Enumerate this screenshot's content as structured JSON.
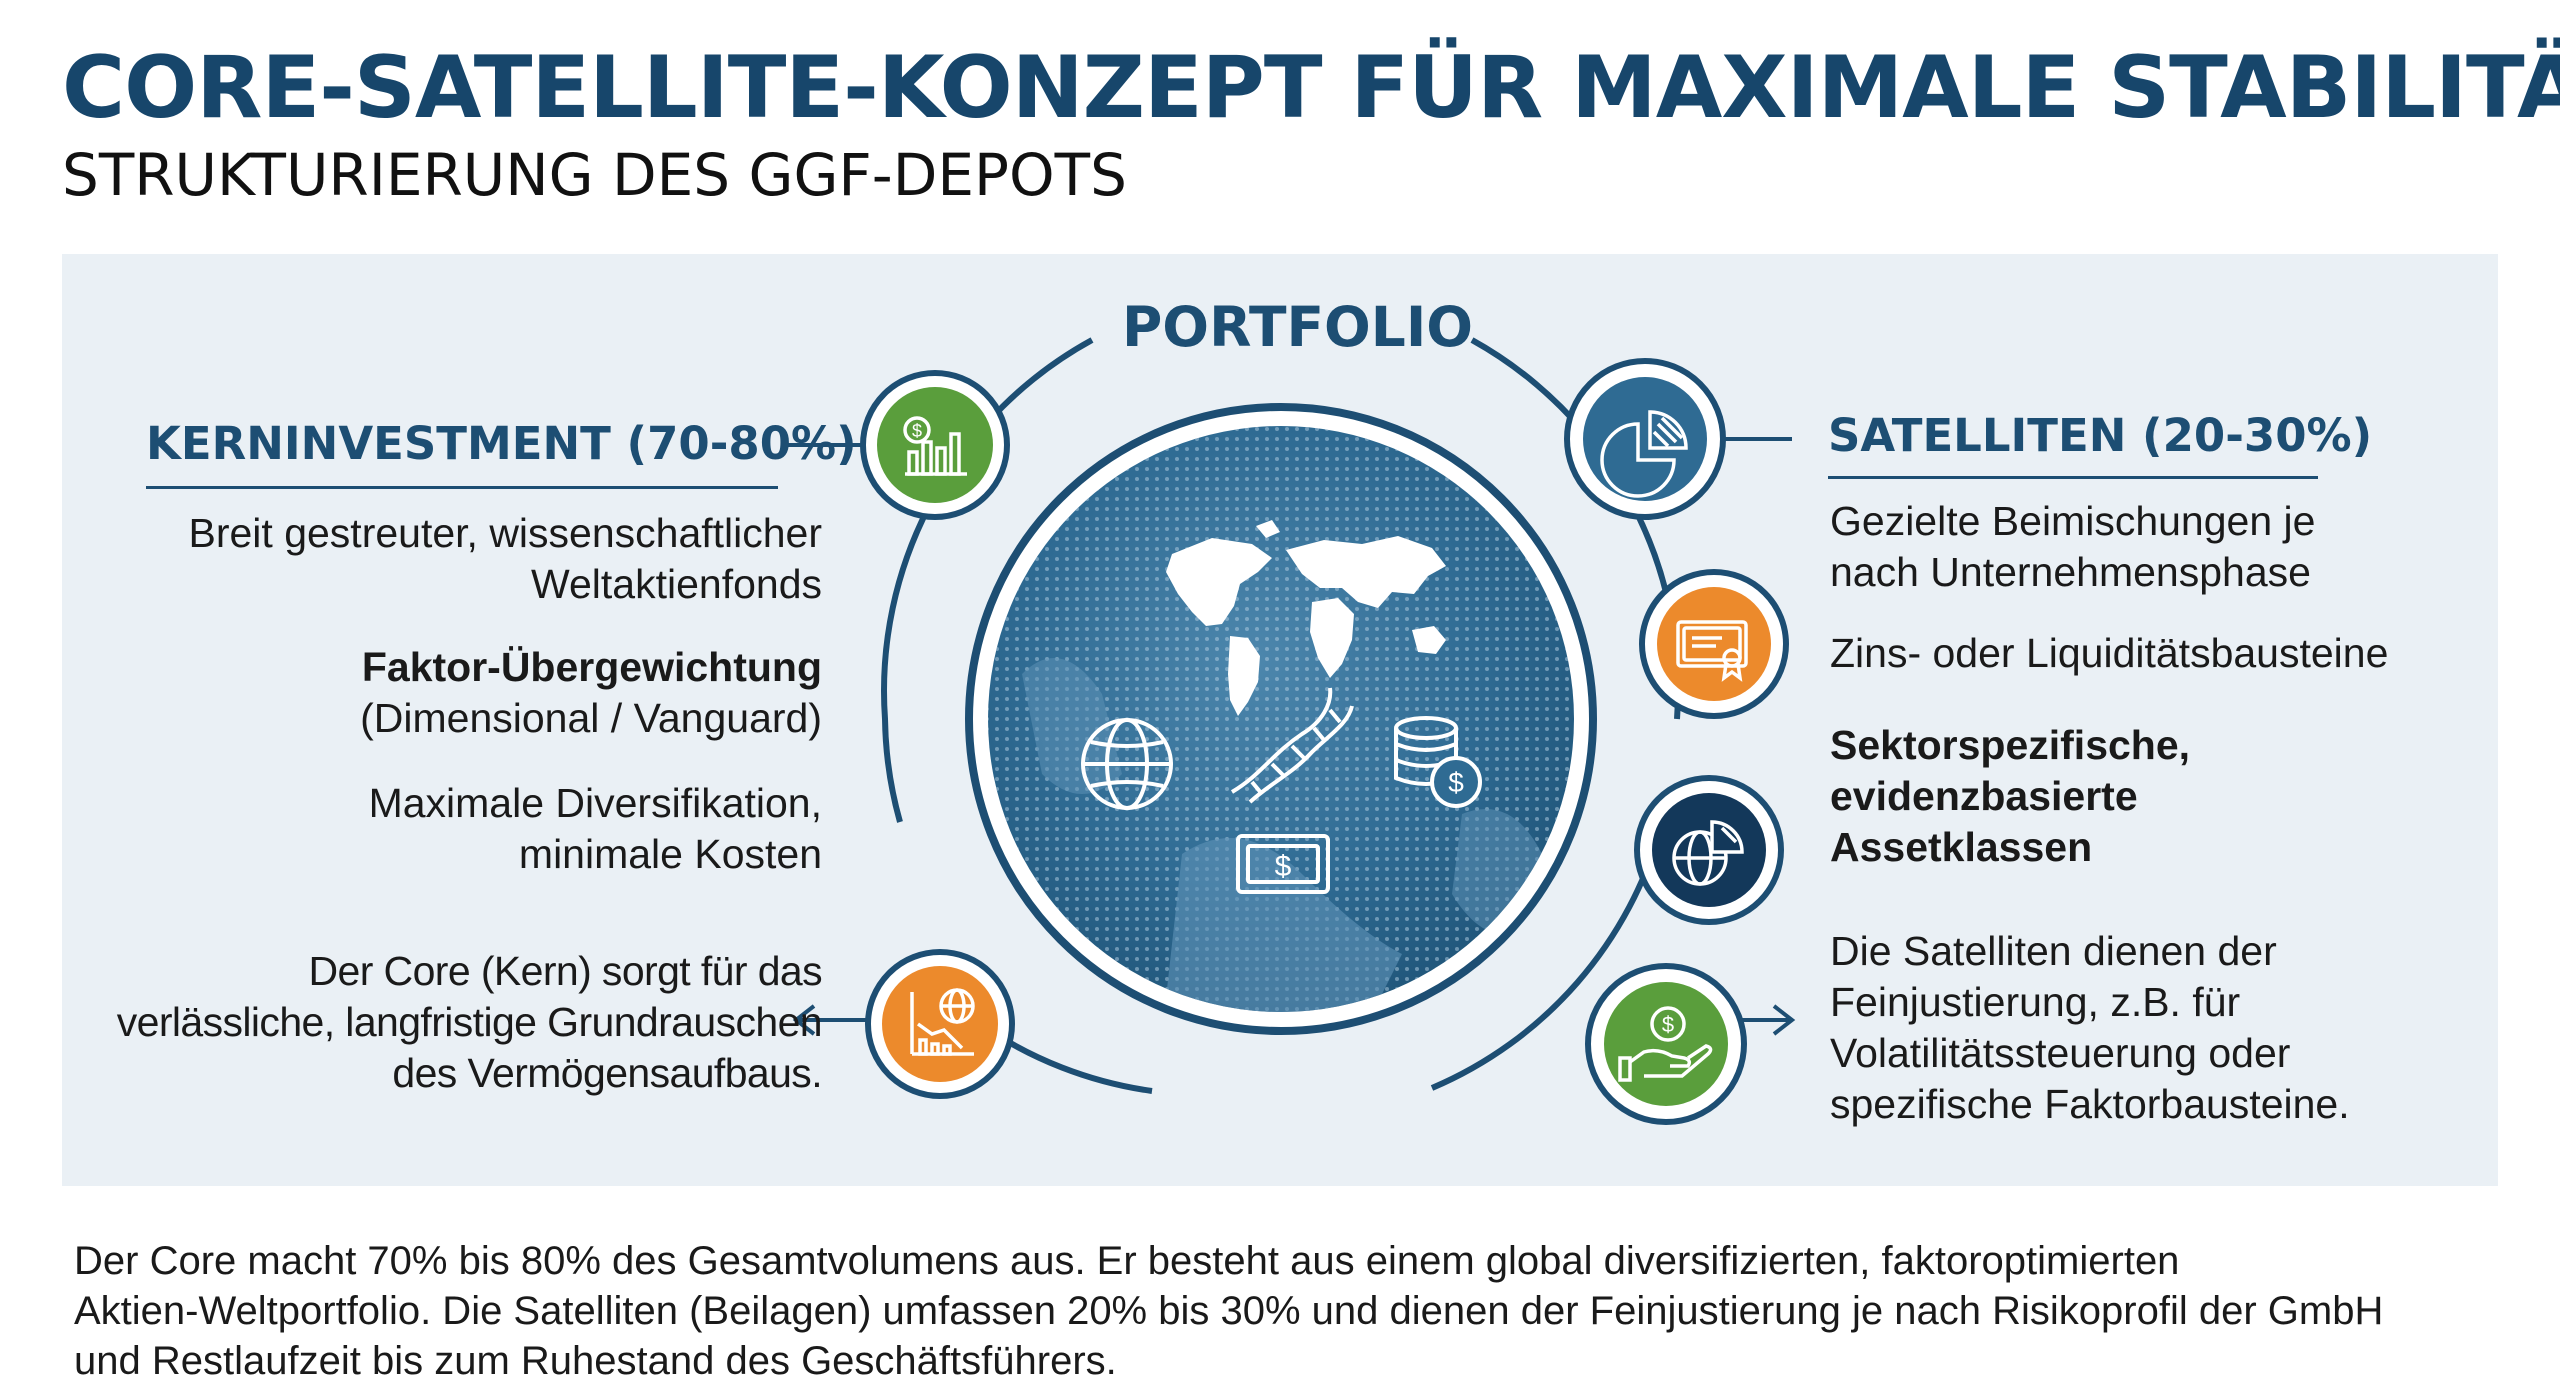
{
  "header": {
    "title": "CORE-SATELLITE-KONZEPT FÜR MAXIMALE STABILITÄT",
    "subtitle": "STRUKTURIERUNG DES GGF-DEPOTS"
  },
  "diagram": {
    "center_label": "PORTFOLIO",
    "core": {
      "heading": "KERNINVESTMENT (70-80%)",
      "items": [
        {
          "lines": [
            "Breit gestreuter, wissenschaftlicher",
            "Weltaktienfonds"
          ]
        },
        {
          "bold_line": "Faktor-Übergewichtung",
          "line": "(Dimensional / Vanguard)"
        },
        {
          "lines": [
            "Maximale Diversifikation,",
            "minimale Kosten"
          ]
        },
        {
          "lines": [
            "Der Core (Kern) sorgt für das",
            "verlässliche, langfristige Grundrauschen",
            "des Vermögensaufbaus."
          ]
        }
      ]
    },
    "satellites": {
      "heading": "SATELLITEN (20-30%)",
      "items": [
        {
          "lines": [
            "Gezielte Beimischungen je",
            "nach Unternehmensphase"
          ]
        },
        {
          "lines": [
            "Zins- oder Liquiditätsbausteine"
          ]
        },
        {
          "bold_lines": [
            "Sektorspezifische,",
            "evidenzbasierte",
            "Assetklassen"
          ]
        },
        {
          "lines": [
            "Die Satelliten dienen der",
            "Feinjustierung, z.B. für",
            "Volatilitätssteuerung oder",
            "spezifische Faktorbausteine."
          ]
        }
      ]
    },
    "icons": {
      "left_top": "dollar-bar-chart-icon",
      "left_bottom": "globe-declining-chart-icon",
      "right_1": "pie-chart-icon",
      "right_2": "certificate-icon",
      "right_3": "globe-pie-icon",
      "right_4": "hand-dollar-icon",
      "globe_inner": [
        "globe-icon",
        "dna-icon",
        "coin-stack-icon",
        "banknote-icon"
      ]
    },
    "colors": {
      "navy": "#1d4e73",
      "green": "#5a9e3c",
      "orange": "#ec8a2c",
      "steel_blue": "#2f6b93",
      "dark_navy": "#13385a",
      "panel_bg": "#eaf0f5"
    }
  },
  "footer": {
    "lines": [
      "Der Core macht 70% bis 80% des Gesamtvolumens aus. Er besteht aus einem global diversifizierten, faktoroptimierten",
      "Aktien-Weltportfolio. Die Satelliten (Beilagen) umfassen 20% bis 30% und dienen der Feinjustierung je nach Risikoprofil der GmbH",
      "und Restlaufzeit bis zum Ruhestand des Geschäftsführers."
    ]
  }
}
